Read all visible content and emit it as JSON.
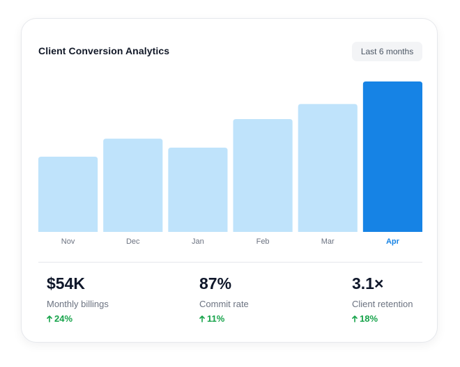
{
  "card": {
    "title": "Client Conversion Analytics",
    "range_label": "Last 6 months"
  },
  "colors": {
    "bar": "#bfe3fb",
    "bar_highlight": "#1683e5",
    "tick": "#6b7280",
    "tick_highlight": "#1683e5",
    "positive": "#16a34a"
  },
  "chart_data": {
    "type": "bar",
    "categories": [
      "Nov",
      "Dec",
      "Jan",
      "Feb",
      "Mar",
      "Apr"
    ],
    "values": [
      50,
      62,
      56,
      75,
      85,
      100
    ],
    "ylim": [
      0,
      100
    ],
    "highlight_index": 5,
    "title": "",
    "xlabel": "",
    "ylabel": "",
    "grid": false,
    "axes_visible": false
  },
  "stats": [
    {
      "value": "$54K",
      "label": "Monthly billings",
      "change": "24%",
      "change_icon": "arrow-up-icon"
    },
    {
      "value": "87%",
      "label": "Commit rate",
      "change": "11%",
      "change_icon": "arrow-up-icon"
    },
    {
      "value": "3.1×",
      "label": "Client retention",
      "change": "18%",
      "change_icon": "arrow-up-icon"
    }
  ]
}
